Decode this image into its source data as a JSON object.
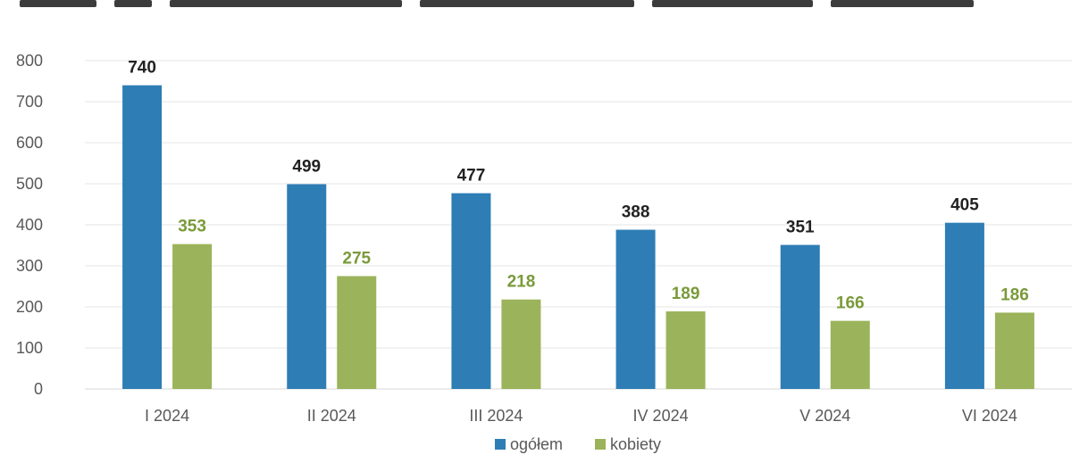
{
  "chart_data": {
    "type": "bar",
    "title": "",
    "xlabel": "",
    "ylabel": "",
    "categories": [
      "I 2024",
      "II 2024",
      "III 2024",
      "IV 2024",
      "V 2024",
      "VI 2024"
    ],
    "series": [
      {
        "name": "ogółem",
        "color": "#2e7db5",
        "label_color": "#222222",
        "values": [
          740,
          499,
          477,
          388,
          351,
          405
        ]
      },
      {
        "name": "kobiety",
        "color": "#9bb35a",
        "label_color": "#7a9a3a",
        "values": [
          353,
          275,
          218,
          189,
          166,
          186
        ]
      }
    ],
    "ylim": [
      0,
      800
    ],
    "yticks": [
      0,
      100,
      200,
      300,
      400,
      500,
      600,
      700,
      800
    ],
    "grid": true,
    "legend_position": "bottom-center"
  }
}
